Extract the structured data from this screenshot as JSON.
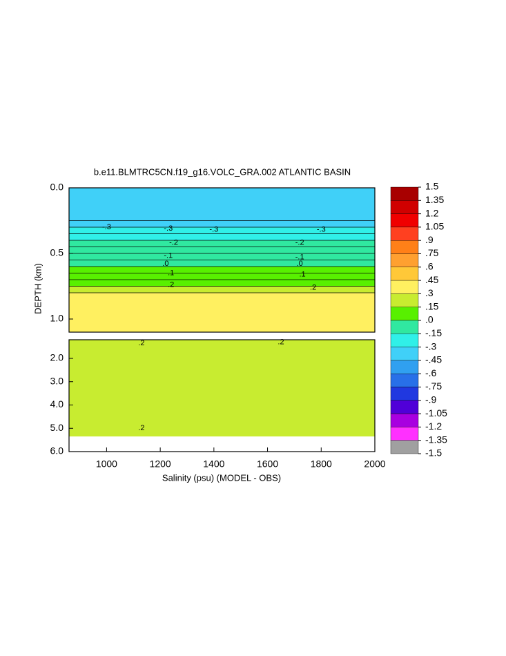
{
  "chart_data": {
    "type": "contour",
    "title": "b.e11.BLMTRC5CN.f19_g16.VOLC_GRA.002 ATLANTIC BASIN",
    "xlabel": "Salinity (psu) (MODEL - OBS)",
    "ylabel": "DEPTH (km)",
    "xlim": [
      860,
      2000
    ],
    "xticks": [
      1000,
      1200,
      1400,
      1600,
      1800,
      2000
    ],
    "panels": [
      {
        "ylim": [
          0,
          1.1
        ],
        "yticks": [
          {
            "value": 0,
            "label": "0.0"
          },
          0.5,
          {
            "value": 1,
            "label": "1.0"
          }
        ],
        "depth_edges": [
          0,
          0.25,
          0.3,
          0.35,
          0.4,
          0.45,
          0.5,
          0.55,
          0.6,
          0.65,
          0.7,
          0.75,
          0.8,
          1.1
        ],
        "values": [
          -0.35,
          -0.3,
          -0.25,
          -0.2,
          -0.15,
          -0.1,
          -0.05,
          0,
          0.05,
          0.1,
          0.15,
          0.2,
          0.3
        ],
        "contour_labels": [
          {
            "label": "-.3",
            "x": 1000,
            "depth": 0.3
          },
          {
            "label": "-.3",
            "x": 1230,
            "depth": 0.31
          },
          {
            "label": "-.3",
            "x": 1400,
            "depth": 0.32
          },
          {
            "label": "-.3",
            "x": 1800,
            "depth": 0.32
          },
          {
            "label": "-.2",
            "x": 1250,
            "depth": 0.42
          },
          {
            "label": "-.2",
            "x": 1720,
            "depth": 0.42
          },
          {
            "label": "-.1",
            "x": 1230,
            "depth": 0.52
          },
          {
            "label": "-.1",
            "x": 1720,
            "depth": 0.53
          },
          {
            "label": ".0",
            "x": 1220,
            "depth": 0.58
          },
          {
            "label": ".0",
            "x": 1720,
            "depth": 0.58
          },
          {
            "label": ".1",
            "x": 1240,
            "depth": 0.65
          },
          {
            "label": ".1",
            "x": 1730,
            "depth": 0.66
          },
          {
            "label": ".2",
            "x": 1240,
            "depth": 0.74
          },
          {
            "label": ".2",
            "x": 1770,
            "depth": 0.76
          }
        ]
      },
      {
        "ylim": [
          1.2,
          6
        ],
        "yticks": [
          {
            "value": 2,
            "label": "2.0"
          },
          {
            "value": 3,
            "label": "3.0"
          },
          {
            "value": 4,
            "label": "4.0"
          },
          {
            "value": 5,
            "label": "5.0"
          },
          {
            "value": 6,
            "label": "6.0"
          }
        ],
        "depth_edges": [
          1.2,
          5.35
        ],
        "values": [
          0.2
        ],
        "contour_labels": [
          {
            "label": ".2",
            "x": 1130,
            "depth": 1.35
          },
          {
            "label": ".2",
            "x": 1650,
            "depth": 1.3
          },
          {
            "label": ".2",
            "x": 1130,
            "depth": 5.0
          }
        ]
      }
    ],
    "colorbar": {
      "lim": [
        -1.5,
        1.5
      ],
      "ticks": [
        1.5,
        1.35,
        1.2,
        1.05,
        {
          "value": 0.9,
          "label": ".9"
        },
        {
          "value": 0.75,
          "label": ".75"
        },
        {
          "value": 0.6,
          "label": ".6"
        },
        {
          "value": 0.45,
          "label": ".45"
        },
        {
          "value": 0.3,
          "label": ".3"
        },
        {
          "value": 0.15,
          "label": ".15"
        },
        {
          "value": 0,
          "label": ".0"
        },
        {
          "value": -0.15,
          "label": "-.15"
        },
        {
          "value": -0.3,
          "label": "-.3"
        },
        {
          "value": -0.45,
          "label": "-.45"
        },
        {
          "value": -0.6,
          "label": "-.6"
        },
        {
          "value": -0.75,
          "label": "-.75"
        },
        {
          "value": -0.9,
          "label": "-.9"
        },
        -1.05,
        -1.2,
        -1.35,
        -1.5
      ],
      "colors": [
        "#a80000",
        "#d00000",
        "#f00000",
        "#ff4020",
        "#ff8018",
        "#ffa030",
        "#ffc838",
        "#fff060",
        "#c8ec30",
        "#58f000",
        "#30e8a0",
        "#30f0e8",
        "#40d0f8",
        "#30a0f0",
        "#2870e8",
        "#2038e0",
        "#5000d8",
        "#a800e0",
        "#ff30ff",
        "#a0a0a0"
      ]
    }
  }
}
